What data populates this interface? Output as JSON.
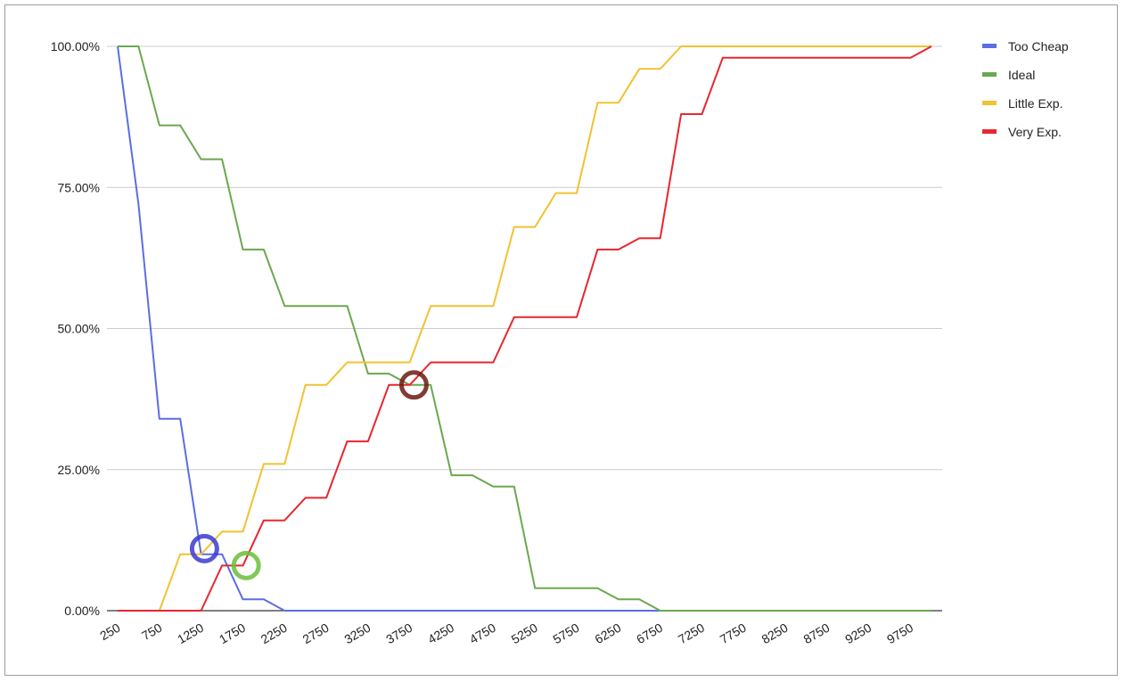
{
  "chart_data": {
    "type": "line",
    "title": "",
    "xlabel": "",
    "ylabel": "",
    "x": [
      250,
      500,
      750,
      1000,
      1250,
      1500,
      1750,
      2000,
      2250,
      2500,
      2750,
      3000,
      3250,
      3500,
      3750,
      4000,
      4250,
      4500,
      4750,
      5000,
      5250,
      5500,
      5750,
      6000,
      6250,
      6500,
      6750,
      7000,
      7250,
      7500,
      7750,
      8000,
      8250,
      8500,
      8750,
      9000,
      9250,
      9500,
      9750,
      10000
    ],
    "x_tick_labels": [
      "250",
      "750",
      "1250",
      "1750",
      "2250",
      "2750",
      "3250",
      "3750",
      "4250",
      "4750",
      "5250",
      "5750",
      "6250",
      "6750",
      "7250",
      "7750",
      "8250",
      "8750",
      "9250",
      "9750"
    ],
    "y_tick_labels": [
      "0.00%",
      "25.00%",
      "50.00%",
      "75.00%",
      "100.00%"
    ],
    "ylim": [
      0,
      1
    ],
    "grid": true,
    "legend_position": "right",
    "series": [
      {
        "name": "Too Cheap",
        "color": "#5b6ee1",
        "values": [
          1.0,
          0.72,
          0.34,
          0.34,
          0.1,
          0.1,
          0.02,
          0.02,
          0,
          0,
          0,
          0,
          0,
          0,
          0,
          0,
          0,
          0,
          0,
          0,
          0,
          0,
          0,
          0,
          0,
          0,
          0,
          0,
          0,
          0,
          0,
          0,
          0,
          0,
          0,
          0,
          0,
          0,
          0,
          0
        ]
      },
      {
        "name": "Ideal",
        "color": "#6aa84f",
        "values": [
          1.0,
          1.0,
          0.86,
          0.86,
          0.8,
          0.8,
          0.64,
          0.64,
          0.54,
          0.54,
          0.54,
          0.54,
          0.42,
          0.42,
          0.4,
          0.4,
          0.24,
          0.24,
          0.22,
          0.22,
          0.04,
          0.04,
          0.04,
          0.04,
          0.02,
          0.02,
          0,
          0,
          0,
          0,
          0,
          0,
          0,
          0,
          0,
          0,
          0,
          0,
          0,
          0
        ]
      },
      {
        "name": "Little Exp.",
        "color": "#f1c232",
        "values": [
          0,
          0,
          0,
          0.1,
          0.1,
          0.14,
          0.14,
          0.26,
          0.26,
          0.4,
          0.4,
          0.44,
          0.44,
          0.44,
          0.44,
          0.54,
          0.54,
          0.54,
          0.54,
          0.68,
          0.68,
          0.74,
          0.74,
          0.9,
          0.9,
          0.96,
          0.96,
          1.0,
          1.0,
          1.0,
          1.0,
          1.0,
          1.0,
          1.0,
          1.0,
          1.0,
          1.0,
          1.0,
          1.0,
          1.0
        ]
      },
      {
        "name": "Very Exp.",
        "color": "#e8262f",
        "values": [
          0,
          0,
          0,
          0,
          0,
          0.08,
          0.08,
          0.16,
          0.16,
          0.2,
          0.2,
          0.3,
          0.3,
          0.4,
          0.4,
          0.44,
          0.44,
          0.44,
          0.44,
          0.52,
          0.52,
          0.52,
          0.52,
          0.64,
          0.64,
          0.66,
          0.66,
          0.88,
          0.88,
          0.98,
          0.98,
          0.98,
          0.98,
          0.98,
          0.98,
          0.98,
          0.98,
          0.98,
          0.98,
          1.0
        ]
      }
    ],
    "annotations": [
      {
        "name": "too-cheap-intersection",
        "color": "#3a3ad0",
        "x": 1290,
        "y": 0.11
      },
      {
        "name": "ideal-intersection",
        "color": "#6abf3a",
        "x": 1790,
        "y": 0.08
      },
      {
        "name": "very-exp-intersection",
        "color": "#6b1b12",
        "x": 3800,
        "y": 0.4
      }
    ]
  }
}
